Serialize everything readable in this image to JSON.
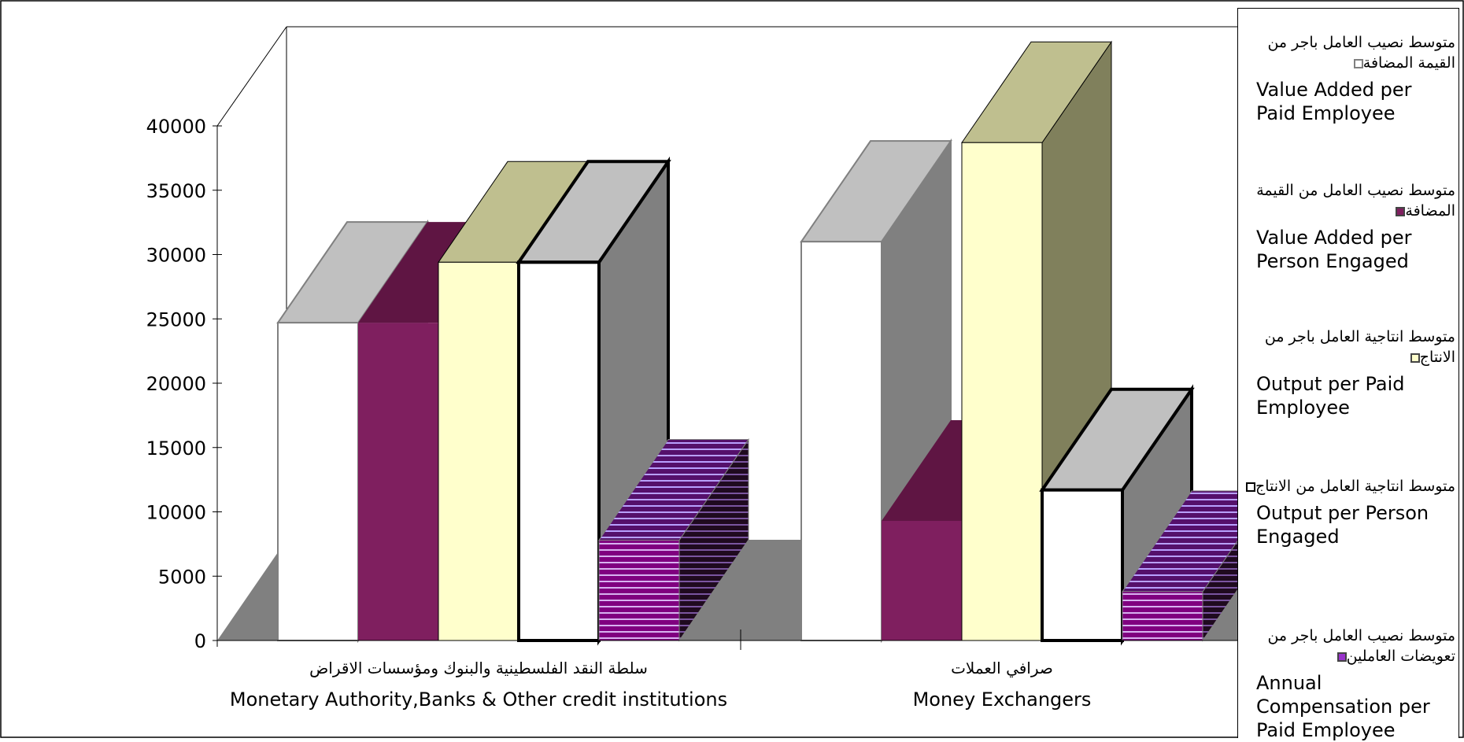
{
  "chart_data": {
    "type": "bar",
    "categories": [
      {
        "ar": "سلطة النقد الفلسطينية  والبنوك ومؤسسات الاقراض",
        "en": "Monetary Authority,Banks & Other credit institutions"
      },
      {
        "ar": "صرافي العملات",
        "en": "Money Exchangers"
      }
    ],
    "series": [
      {
        "name_ar": "متوسط نصيب العامل  باجر من القيمة  المضافة",
        "name_en": "Value Added per Paid  Employee",
        "values": [
          24700,
          31000
        ],
        "color": "#ffffff",
        "swatch": "#ffffff",
        "swatch_border": "#808080"
      },
      {
        "name_ar": "متوسط نصيب العامل من القيمة المضافة",
        "name_en": "Value Added per Person Engaged",
        "values": [
          24700,
          9300
        ],
        "color": "#7f1f5f",
        "swatch": "#7f1f5f",
        "swatch_border": "#444444"
      },
      {
        "name_ar": "متوسط انتاجية العامل  باجر من الانتاج",
        "name_en": "Output per Paid Employee",
        "values": [
          29400,
          38700
        ],
        "color": "#ffffcc",
        "swatch": "#ffffcc",
        "swatch_border": "#444444"
      },
      {
        "name_ar": "متوسط انتاجية العامل  من الانتاج",
        "name_en": "Output per Person Engaged",
        "values": [
          29400,
          11700
        ],
        "color": "#ffffff",
        "swatch": "#ffffff",
        "swatch_border": "#000000"
      },
      {
        "name_ar": "متوسط نصيب العامل  باجر من تعويضات   العاملين",
        "name_en": "Annual Compensation  per Paid Employee",
        "values": [
          7800,
          3800
        ],
        "color": "#800080",
        "swatch": "#9932cc",
        "swatch_border": "#444444"
      }
    ],
    "y_ticks": [
      "0",
      "5000",
      "10000",
      "15000",
      "20000",
      "25000",
      "30000",
      "35000",
      "40000"
    ],
    "ylim": [
      0,
      40000
    ],
    "legend_position": "right"
  }
}
